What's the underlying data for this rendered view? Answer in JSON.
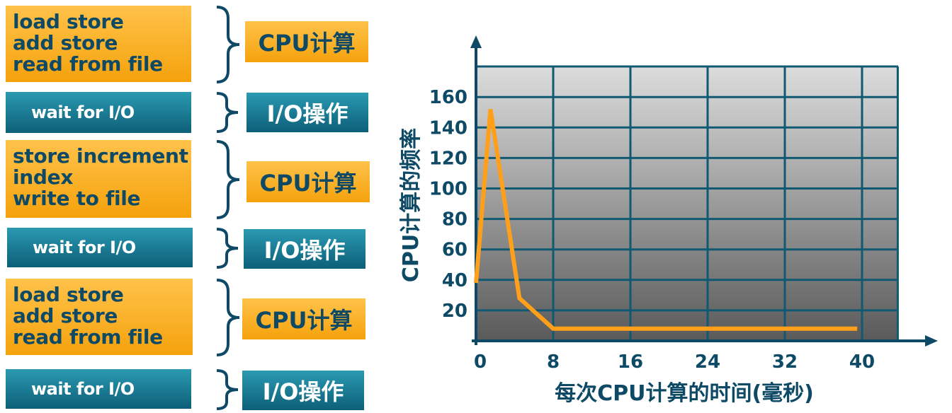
{
  "blocks": [
    {
      "kind": "cpu",
      "lines": [
        "load store",
        "add store",
        "read from file"
      ],
      "label": "CPU计算"
    },
    {
      "kind": "io",
      "lines": [
        "wait for I/O"
      ],
      "label": "I/O操作"
    },
    {
      "kind": "cpu",
      "lines": [
        "store increment",
        "index",
        "write to file"
      ],
      "label": "CPU计算"
    },
    {
      "kind": "io",
      "lines": [
        "wait for I/O"
      ],
      "label": "I/O操作"
    },
    {
      "kind": "cpu",
      "lines": [
        "load store",
        "add store",
        "read from file"
      ],
      "label": "CPU计算"
    },
    {
      "kind": "io",
      "lines": [
        "wait for I/O"
      ],
      "label": "I/O操作"
    }
  ],
  "colors": {
    "cpu": "#f5a20c",
    "io": "#0d5f78",
    "text": "#0e4a66",
    "curve": "#ff9f1a"
  },
  "chart_data": {
    "type": "line",
    "xlabel": "每次CPU计算的时间(毫秒)",
    "ylabel": "CPU计算的频率",
    "x_ticks": [
      0,
      8,
      16,
      24,
      32,
      40
    ],
    "y_ticks": [
      20,
      40,
      60,
      80,
      100,
      120,
      140,
      160
    ],
    "xlim": [
      0,
      44
    ],
    "ylim": [
      0,
      180
    ],
    "grid": true,
    "series": [
      {
        "x": [
          0,
          1.5,
          4.5,
          8,
          39.5
        ],
        "y": [
          38,
          152,
          28,
          8,
          8
        ]
      }
    ]
  }
}
